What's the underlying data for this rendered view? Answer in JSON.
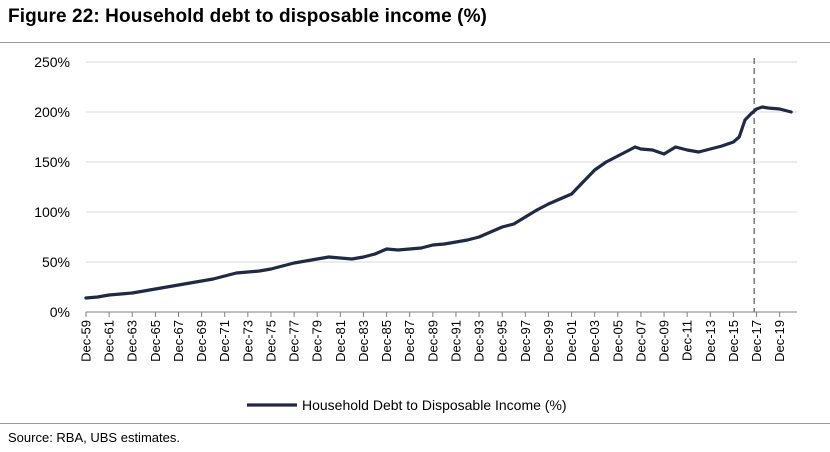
{
  "figure": {
    "title": "Figure 22: Household debt to disposable income (%)",
    "source": "Source:  RBA, UBS estimates."
  },
  "colors": {
    "series": "#1f2a44",
    "axis": "#7f7f7f",
    "grid": "#d9d9d9",
    "marker_line": "#7f7f7f",
    "text": "#000000"
  },
  "chart_data": {
    "type": "line",
    "title": "",
    "xlabel": "",
    "ylabel": "",
    "ylim": [
      0,
      250
    ],
    "y_ticks": [
      0,
      50,
      100,
      150,
      200,
      250
    ],
    "y_tick_labels": [
      "0%",
      "50%",
      "100%",
      "150%",
      "200%",
      "250%"
    ],
    "x_range": [
      1959,
      2020.5
    ],
    "x_ticks": [
      1959,
      1961,
      1963,
      1965,
      1967,
      1969,
      1971,
      1973,
      1975,
      1977,
      1979,
      1981,
      1983,
      1985,
      1987,
      1989,
      1991,
      1993,
      1995,
      1997,
      1999,
      2001,
      2003,
      2005,
      2007,
      2009,
      2011,
      2013,
      2015,
      2017,
      2019
    ],
    "x_tick_labels": [
      "Dec-59",
      "Dec-61",
      "Dec-63",
      "Dec-65",
      "Dec-67",
      "Dec-69",
      "Dec-71",
      "Dec-73",
      "Dec-75",
      "Dec-77",
      "Dec-79",
      "Dec-81",
      "Dec-83",
      "Dec-85",
      "Dec-87",
      "Dec-89",
      "Dec-91",
      "Dec-93",
      "Dec-95",
      "Dec-97",
      "Dec-99",
      "Dec-01",
      "Dec-03",
      "Dec-05",
      "Dec-07",
      "Dec-09",
      "Dec-11",
      "Dec-13",
      "Dec-15",
      "Dec-17",
      "Dec-19"
    ],
    "vertical_marker_x": 2016.8,
    "grid": true,
    "legend_position": "bottom",
    "series": [
      {
        "name": "Household Debt to Disposable Income (%)",
        "x": [
          1959,
          1960,
          1961,
          1962,
          1963,
          1964,
          1965,
          1966,
          1967,
          1968,
          1969,
          1970,
          1971,
          1972,
          1973,
          1974,
          1975,
          1976,
          1977,
          1978,
          1979,
          1980,
          1981,
          1982,
          1983,
          1984,
          1985,
          1986,
          1987,
          1988,
          1989,
          1990,
          1991,
          1992,
          1993,
          1994,
          1995,
          1996,
          1997,
          1998,
          1999,
          2000,
          2001,
          2002,
          2003,
          2004,
          2005,
          2006,
          2006.5,
          2007,
          2008,
          2009,
          2010,
          2011,
          2012,
          2013,
          2014,
          2015,
          2015.5,
          2016,
          2016.5,
          2017,
          2017.5,
          2018,
          2019,
          2020
        ],
        "y": [
          14,
          15,
          17,
          18,
          19,
          21,
          23,
          25,
          27,
          29,
          31,
          33,
          36,
          39,
          40,
          41,
          43,
          46,
          49,
          51,
          53,
          55,
          54,
          53,
          55,
          58,
          63,
          62,
          63,
          64,
          67,
          68,
          70,
          72,
          75,
          80,
          85,
          88,
          95,
          102,
          108,
          113,
          118,
          130,
          142,
          150,
          156,
          162,
          165,
          163,
          162,
          158,
          165,
          162,
          160,
          163,
          166,
          170,
          175,
          192,
          198,
          203,
          205,
          204,
          203,
          200
        ]
      }
    ]
  }
}
